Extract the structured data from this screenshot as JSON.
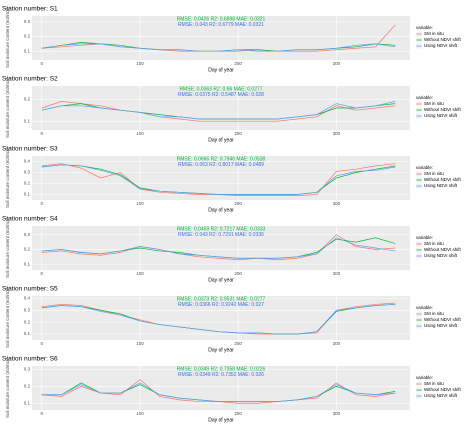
{
  "chart_data": [
    {
      "type": "line",
      "title": "Station number: S1",
      "annotations": [
        {
          "text": "RMSE: 0.0426  R2: 0.6898  MAE: 0.0321",
          "color": "#00ba38"
        },
        {
          "text": "RMSE: 0.043  R2: 0.6779  MAE: 0.0321",
          "color": "#3a6fe0"
        }
      ],
      "xlabel": "Day of year",
      "ylabel": "Soil moisture content (m3/m3)",
      "legend_title": "variable:",
      "x": [
        0,
        20,
        40,
        60,
        80,
        100,
        120,
        140,
        160,
        180,
        200,
        220,
        240,
        260,
        280,
        300,
        320,
        340,
        360
      ],
      "series": [
        {
          "name": "SM in situ",
          "color": "#f8766d",
          "values": [
            0.12,
            0.13,
            0.14,
            0.15,
            0.13,
            0.12,
            0.11,
            0.1,
            0.1,
            0.1,
            0.1,
            0.11,
            0.1,
            0.1,
            0.1,
            0.11,
            0.12,
            0.13,
            0.28
          ]
        },
        {
          "name": "Without NDVI shift",
          "color": "#00ba38",
          "values": [
            0.12,
            0.14,
            0.16,
            0.15,
            0.14,
            0.12,
            0.11,
            0.11,
            0.1,
            0.1,
            0.11,
            0.11,
            0.1,
            0.11,
            0.11,
            0.12,
            0.13,
            0.15,
            0.14
          ]
        },
        {
          "name": "Using NDVI shift",
          "color": "#619cff",
          "values": [
            0.12,
            0.14,
            0.15,
            0.15,
            0.13,
            0.12,
            0.11,
            0.11,
            0.1,
            0.1,
            0.11,
            0.1,
            0.1,
            0.11,
            0.11,
            0.12,
            0.14,
            0.15,
            0.13
          ]
        }
      ],
      "xlim": [
        -10,
        375
      ],
      "ylim": [
        0.04,
        0.34
      ],
      "xticks": [
        0,
        100,
        200,
        300
      ],
      "yticks": [
        0.1,
        0.2,
        0.3
      ]
    },
    {
      "type": "line",
      "title": "Station number: S2",
      "annotations": [
        {
          "text": "RMSE: 0.0363  R2: 0.66  MAE: 0.0277",
          "color": "#00ba38"
        },
        {
          "text": "RMSE: 0.0375  R2: 0.5487  MAE: 0.028",
          "color": "#3a6fe0"
        }
      ],
      "xlabel": "Day of year",
      "ylabel": "Soil moisture content (m3/m3)",
      "legend_title": "variable:",
      "x": [
        0,
        20,
        40,
        60,
        80,
        100,
        120,
        140,
        160,
        180,
        200,
        220,
        240,
        260,
        280,
        300,
        320,
        340,
        360
      ],
      "series": [
        {
          "name": "SM in situ",
          "color": "#f8766d",
          "values": [
            0.16,
            0.19,
            0.18,
            0.17,
            0.15,
            0.14,
            0.12,
            0.11,
            0.1,
            0.1,
            0.1,
            0.1,
            0.1,
            0.11,
            0.12,
            0.17,
            0.15,
            0.16,
            0.17
          ]
        },
        {
          "name": "Without NDVI shift",
          "color": "#00ba38",
          "values": [
            0.15,
            0.17,
            0.18,
            0.16,
            0.15,
            0.14,
            0.13,
            0.12,
            0.11,
            0.11,
            0.11,
            0.11,
            0.11,
            0.12,
            0.13,
            0.16,
            0.16,
            0.17,
            0.18
          ]
        },
        {
          "name": "Using NDVI shift",
          "color": "#619cff",
          "values": [
            0.15,
            0.17,
            0.17,
            0.16,
            0.15,
            0.14,
            0.12,
            0.12,
            0.11,
            0.11,
            0.11,
            0.11,
            0.11,
            0.12,
            0.13,
            0.18,
            0.16,
            0.17,
            0.19
          ]
        }
      ],
      "xlim": [
        -10,
        375
      ],
      "ylim": [
        0.06,
        0.26
      ],
      "xticks": [
        0,
        100,
        200,
        300
      ],
      "yticks": [
        0.1,
        0.2
      ]
    },
    {
      "type": "line",
      "title": "Station number: S3",
      "annotations": [
        {
          "text": "RMSE: 0.0666  R2: 0.7946  MAE: 0.0538",
          "color": "#00ba38"
        },
        {
          "text": "RMSE: 0.063  R2: 0.8017  MAE: 0.0489",
          "color": "#3a6fe0"
        }
      ],
      "xlabel": "Day of year",
      "ylabel": "Soil moisture content (m3/m3)",
      "legend_title": "variable:",
      "x": [
        0,
        20,
        40,
        60,
        80,
        100,
        120,
        140,
        160,
        180,
        200,
        220,
        240,
        260,
        280,
        300,
        320,
        340,
        360
      ],
      "series": [
        {
          "name": "SM in situ",
          "color": "#f8766d",
          "values": [
            0.36,
            0.38,
            0.34,
            0.25,
            0.3,
            0.15,
            0.12,
            0.11,
            0.1,
            0.1,
            0.09,
            0.09,
            0.09,
            0.09,
            0.1,
            0.31,
            0.33,
            0.36,
            0.38
          ]
        },
        {
          "name": "Without NDVI shift",
          "color": "#00ba38",
          "values": [
            0.35,
            0.37,
            0.36,
            0.33,
            0.28,
            0.16,
            0.13,
            0.12,
            0.11,
            0.1,
            0.1,
            0.1,
            0.1,
            0.1,
            0.12,
            0.25,
            0.3,
            0.33,
            0.36
          ]
        },
        {
          "name": "Using NDVI shift",
          "color": "#619cff",
          "values": [
            0.35,
            0.37,
            0.36,
            0.32,
            0.27,
            0.15,
            0.13,
            0.12,
            0.11,
            0.1,
            0.1,
            0.1,
            0.1,
            0.1,
            0.12,
            0.27,
            0.31,
            0.32,
            0.35
          ]
        }
      ],
      "xlim": [
        -10,
        375
      ],
      "ylim": [
        0.05,
        0.45
      ],
      "xticks": [
        0,
        100,
        200,
        300
      ],
      "yticks": [
        0.1,
        0.2,
        0.3,
        0.4
      ]
    },
    {
      "type": "line",
      "title": "Station number: S4",
      "annotations": [
        {
          "text": "RMSE: 0.0459  R2: 0.7217  MAE: 0.0333",
          "color": "#00ba38"
        },
        {
          "text": "RMSE: 0.043  R2: 0.7291  MAE: 0.0336",
          "color": "#3a6fe0"
        }
      ],
      "xlabel": "Day of year",
      "ylabel": "Soil moisture content (m3/m3)",
      "legend_title": "variable:",
      "x": [
        0,
        20,
        40,
        60,
        80,
        100,
        120,
        140,
        160,
        180,
        200,
        220,
        240,
        260,
        280,
        300,
        320,
        340,
        360
      ],
      "series": [
        {
          "name": "SM in situ",
          "color": "#f8766d",
          "values": [
            0.18,
            0.19,
            0.17,
            0.16,
            0.18,
            0.22,
            0.2,
            0.17,
            0.15,
            0.14,
            0.13,
            0.14,
            0.13,
            0.14,
            0.17,
            0.3,
            0.22,
            0.2,
            0.21
          ]
        },
        {
          "name": "Without NDVI shift",
          "color": "#00ba38",
          "values": [
            0.19,
            0.2,
            0.18,
            0.17,
            0.19,
            0.21,
            0.19,
            0.18,
            0.16,
            0.15,
            0.14,
            0.14,
            0.14,
            0.15,
            0.18,
            0.27,
            0.25,
            0.28,
            0.24
          ]
        },
        {
          "name": "Using NDVI shift",
          "color": "#619cff",
          "values": [
            0.19,
            0.2,
            0.18,
            0.17,
            0.19,
            0.22,
            0.2,
            0.17,
            0.16,
            0.15,
            0.14,
            0.14,
            0.14,
            0.15,
            0.17,
            0.28,
            0.23,
            0.21,
            0.19
          ]
        }
      ],
      "xlim": [
        -10,
        375
      ],
      "ylim": [
        0.06,
        0.36
      ],
      "xticks": [
        0,
        100,
        200,
        300
      ],
      "yticks": [
        0.1,
        0.2,
        0.3
      ]
    },
    {
      "type": "line",
      "title": "Station number: S5",
      "annotations": [
        {
          "text": "RMSE: 0.0373  R2: 0.9531  MAE: 0.0277",
          "color": "#00ba38"
        },
        {
          "text": "RMSE: 0.0366  R2: 0.9242  MAE: 0.027",
          "color": "#3a6fe0"
        }
      ],
      "xlabel": "Day of year",
      "ylabel": "Soil moisture content (m3/m3)",
      "legend_title": "variable:",
      "x": [
        0,
        20,
        40,
        60,
        80,
        100,
        120,
        140,
        160,
        180,
        200,
        220,
        240,
        260,
        280,
        300,
        320,
        340,
        360
      ],
      "series": [
        {
          "name": "SM in situ",
          "color": "#f8766d",
          "values": [
            0.33,
            0.35,
            0.34,
            0.3,
            0.26,
            0.22,
            0.18,
            0.16,
            0.14,
            0.12,
            0.11,
            0.1,
            0.1,
            0.1,
            0.11,
            0.3,
            0.33,
            0.35,
            0.36
          ]
        },
        {
          "name": "Without NDVI shift",
          "color": "#00ba38",
          "values": [
            0.32,
            0.34,
            0.33,
            0.3,
            0.27,
            0.21,
            0.18,
            0.16,
            0.14,
            0.12,
            0.11,
            0.11,
            0.1,
            0.1,
            0.12,
            0.29,
            0.32,
            0.34,
            0.35
          ]
        },
        {
          "name": "Using NDVI shift",
          "color": "#619cff",
          "values": [
            0.32,
            0.34,
            0.33,
            0.29,
            0.26,
            0.21,
            0.18,
            0.16,
            0.14,
            0.12,
            0.11,
            0.11,
            0.1,
            0.1,
            0.12,
            0.3,
            0.32,
            0.34,
            0.35
          ]
        }
      ],
      "xlim": [
        -10,
        375
      ],
      "ylim": [
        0.05,
        0.42
      ],
      "xticks": [
        0,
        100,
        200,
        300
      ],
      "yticks": [
        0.1,
        0.2,
        0.3,
        0.4
      ]
    },
    {
      "type": "line",
      "title": "Station number: S6",
      "annotations": [
        {
          "text": "RMSE: 0.0349  R2: 0.7358  MAE: 0.0226",
          "color": "#00ba38"
        },
        {
          "text": "RMSE: 0.0349  R2: 0.7352  MAE: 0.026",
          "color": "#3a6fe0"
        }
      ],
      "xlabel": "Day of year",
      "ylabel": "Soil moisture content (m3/m3)",
      "legend_title": "variable:",
      "x": [
        0,
        20,
        40,
        60,
        80,
        100,
        120,
        140,
        160,
        180,
        200,
        220,
        240,
        260,
        280,
        300,
        320,
        340,
        360
      ],
      "series": [
        {
          "name": "SM in situ",
          "color": "#f8766d",
          "values": [
            0.15,
            0.14,
            0.2,
            0.16,
            0.15,
            0.24,
            0.14,
            0.12,
            0.11,
            0.11,
            0.1,
            0.1,
            0.11,
            0.12,
            0.13,
            0.22,
            0.15,
            0.14,
            0.16
          ]
        },
        {
          "name": "Without NDVI shift",
          "color": "#00ba38",
          "values": [
            0.15,
            0.15,
            0.22,
            0.16,
            0.16,
            0.21,
            0.15,
            0.13,
            0.12,
            0.11,
            0.11,
            0.11,
            0.11,
            0.12,
            0.14,
            0.2,
            0.16,
            0.15,
            0.17
          ]
        },
        {
          "name": "Using NDVI shift",
          "color": "#619cff",
          "values": [
            0.15,
            0.15,
            0.21,
            0.16,
            0.16,
            0.22,
            0.15,
            0.13,
            0.12,
            0.11,
            0.11,
            0.11,
            0.11,
            0.12,
            0.14,
            0.21,
            0.16,
            0.15,
            0.16
          ]
        }
      ],
      "xlim": [
        -10,
        375
      ],
      "ylim": [
        0.06,
        0.32
      ],
      "xticks": [
        0,
        100,
        200,
        300
      ],
      "yticks": [
        0.1,
        0.2,
        0.3
      ]
    }
  ]
}
